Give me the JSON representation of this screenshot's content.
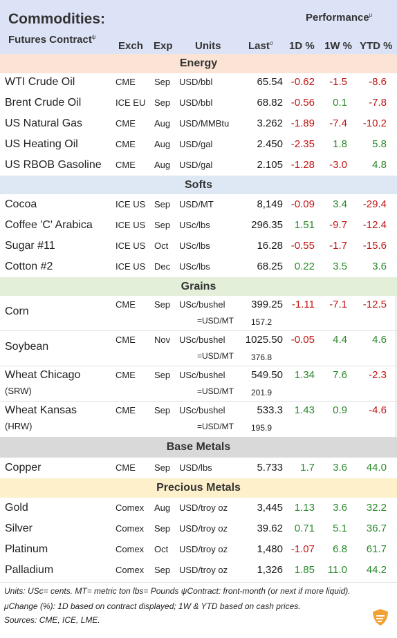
{
  "header": {
    "title": "Commodities:",
    "subtitle": "Futures Contract",
    "subtitle_mark": "ψ",
    "performance": "Performance",
    "performance_mark": "μ",
    "columns": {
      "exch": "Exch",
      "exp": "Exp",
      "units": "Units",
      "last": "Last",
      "last_mark": "σ",
      "d1": "1D %",
      "w1": "1W %",
      "ytd": "YTD %"
    }
  },
  "sections": {
    "energy": "Energy",
    "softs": "Softs",
    "grains": "Grains",
    "base_metals": "Base Metals",
    "precious_metals": "Precious Metals"
  },
  "energy": [
    {
      "name": "WTI Crude Oil",
      "exch": "CME",
      "exp": "Sep",
      "units": "USD/bbl",
      "last": "65.54",
      "d1": "-0.62",
      "w1": "-1.5",
      "ytd": "-8.6"
    },
    {
      "name": "Brent Crude Oil",
      "exch": "ICE EU",
      "exp": "Sep",
      "units": "USD/bbl",
      "last": "68.82",
      "d1": "-0.56",
      "w1": "0.1",
      "ytd": "-7.8"
    },
    {
      "name": "US Natural Gas",
      "exch": "CME",
      "exp": "Aug",
      "units": "USD/MMBtu",
      "last": "3.262",
      "d1": "-1.89",
      "w1": "-7.4",
      "ytd": "-10.2"
    },
    {
      "name": "US Heating Oil",
      "exch": "CME",
      "exp": "Aug",
      "units": "USD/gal",
      "last": "2.450",
      "d1": "-2.35",
      "w1": "1.8",
      "ytd": "5.8"
    },
    {
      "name": "US RBOB Gasoline",
      "exch": "CME",
      "exp": "Aug",
      "units": "USD/gal",
      "last": "2.105",
      "d1": "-1.28",
      "w1": "-3.0",
      "ytd": "4.8"
    }
  ],
  "softs": [
    {
      "name": "Cocoa",
      "exch": "ICE US",
      "exp": "Sep",
      "units": "USD/MT",
      "last": "8,149",
      "d1": "-0.09",
      "w1": "3.4",
      "ytd": "-29.4"
    },
    {
      "name": "Coffee 'C' Arabica",
      "exch": "ICE US",
      "exp": "Sep",
      "units": "USc/lbs",
      "last": "296.35",
      "d1": "1.51",
      "w1": "-9.7",
      "ytd": "-12.4"
    },
    {
      "name": "Sugar #11",
      "exch": "ICE US",
      "exp": "Oct",
      "units": "USc/lbs",
      "last": "16.28",
      "d1": "-0.55",
      "w1": "-1.7",
      "ytd": "-15.6"
    },
    {
      "name": "Cotton #2",
      "exch": "ICE US",
      "exp": "Dec",
      "units": "USc/lbs",
      "last": "68.25",
      "d1": "0.22",
      "w1": "3.5",
      "ytd": "3.6"
    }
  ],
  "grains": [
    {
      "name": "Corn",
      "sub": "",
      "exch": "CME",
      "exp": "Sep",
      "units": "USc/bushel",
      "last": "399.25",
      "d1": "-1.11",
      "w1": "-7.1",
      "ytd": "-12.5",
      "conv_label": "=USD/MT",
      "conv": "157.2"
    },
    {
      "name": "Soybean",
      "sub": "",
      "exch": "CME",
      "exp": "Nov",
      "units": "USc/bushel",
      "last": "1025.50",
      "d1": "-0.05",
      "w1": "4.4",
      "ytd": "4.6",
      "conv_label": "=USD/MT",
      "conv": "376.8"
    },
    {
      "name": "Wheat Chicago",
      "sub": "(SRW)",
      "exch": "CME",
      "exp": "Sep",
      "units": "USc/bushel",
      "last": "549.50",
      "d1": "1.34",
      "w1": "7.6",
      "ytd": "-2.3",
      "conv_label": "=USD/MT",
      "conv": "201.9"
    },
    {
      "name": "Wheat Kansas",
      "sub": "(HRW)",
      "exch": "CME",
      "exp": "Sep",
      "units": "USc/bushel",
      "last": "533.3",
      "d1": "1.43",
      "w1": "0.9",
      "ytd": "-4.6",
      "conv_label": "=USD/MT",
      "conv": "195.9"
    }
  ],
  "base_metals": [
    {
      "name": "Copper",
      "exch": "CME",
      "exp": "Sep",
      "units": "USD/lbs",
      "last": "5.733",
      "d1": "1.7",
      "w1": "3.6",
      "ytd": "44.0"
    }
  ],
  "precious_metals": [
    {
      "name": "Gold",
      "exch": "Comex",
      "exp": "Aug",
      "units": "USD/troy oz",
      "last": "3,445",
      "d1": "1.13",
      "w1": "3.6",
      "ytd": "32.2"
    },
    {
      "name": "Silver",
      "exch": "Comex",
      "exp": "Sep",
      "units": "USD/troy oz",
      "last": "39.62",
      "d1": "0.71",
      "w1": "5.1",
      "ytd": "36.7"
    },
    {
      "name": "Platinum",
      "exch": "Comex",
      "exp": "Oct",
      "units": "USD/troy oz",
      "last": "1,480",
      "d1": "-1.07",
      "w1": "6.8",
      "ytd": "61.7"
    },
    {
      "name": "Palladium",
      "exch": "Comex",
      "exp": "Sep",
      "units": "USD/troy oz",
      "last": "1,326",
      "d1": "1.85",
      "w1": "11.0",
      "ytd": "44.2"
    }
  ],
  "footer": {
    "line1": "Units: USc= cents.   MT= metric ton    lbs= Pounds   ψContract: front-month (or next if more liquid).",
    "line2": "μChange (%): 1D based on contract displayed; 1W & YTD based on cash prices.",
    "line3": "Sources: CME, ICE, LME."
  },
  "colors": {
    "header_bg": "#dde3f6",
    "energy_bg": "#fbe3d5",
    "softs_bg": "#dde8f4",
    "grains_bg": "#e3efd9",
    "base_metals_bg": "#d9d9d9",
    "precious_metals_bg": "#fdf0cb",
    "positive": "#2a8a2a",
    "negative": "#c21414"
  },
  "icons": {
    "arrow": "red-down-arrow-icon",
    "logo": "brand-logo-icon"
  }
}
